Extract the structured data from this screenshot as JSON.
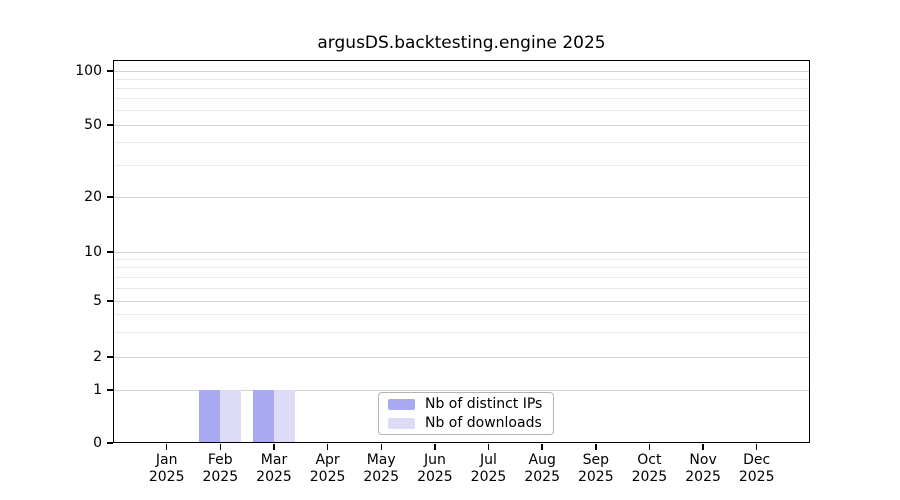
{
  "chart_data": {
    "type": "bar",
    "title": "argusDS.backtesting.engine 2025",
    "x": {
      "months": [
        "Jan",
        "Feb",
        "Mar",
        "Apr",
        "May",
        "Jun",
        "Jul",
        "Aug",
        "Sep",
        "Oct",
        "Nov",
        "Dec"
      ],
      "year": "2025"
    },
    "series": [
      {
        "name": "Nb of distinct IPs",
        "color": "#a9a9f2",
        "values": [
          0,
          1,
          1,
          0,
          0,
          0,
          0,
          0,
          0,
          0,
          0,
          0
        ]
      },
      {
        "name": "Nb of downloads",
        "color": "#dcdcf8",
        "values": [
          0,
          1,
          1,
          0,
          0,
          0,
          0,
          0,
          0,
          0,
          0,
          0
        ]
      }
    ],
    "y_axis": {
      "major_ticks": [
        100,
        50,
        20,
        10,
        5,
        2,
        1,
        0
      ],
      "minor_gridlines": [
        90,
        80,
        70,
        60,
        40,
        30,
        9,
        8,
        7,
        6,
        4,
        3
      ],
      "scale": "log-like",
      "ylim": [
        0,
        115
      ]
    },
    "grid": {
      "horizontal": true,
      "vertical": false
    },
    "legend": {
      "position": "inside bottom-center",
      "entries": [
        "Nb of distinct IPs",
        "Nb of downloads"
      ]
    }
  }
}
